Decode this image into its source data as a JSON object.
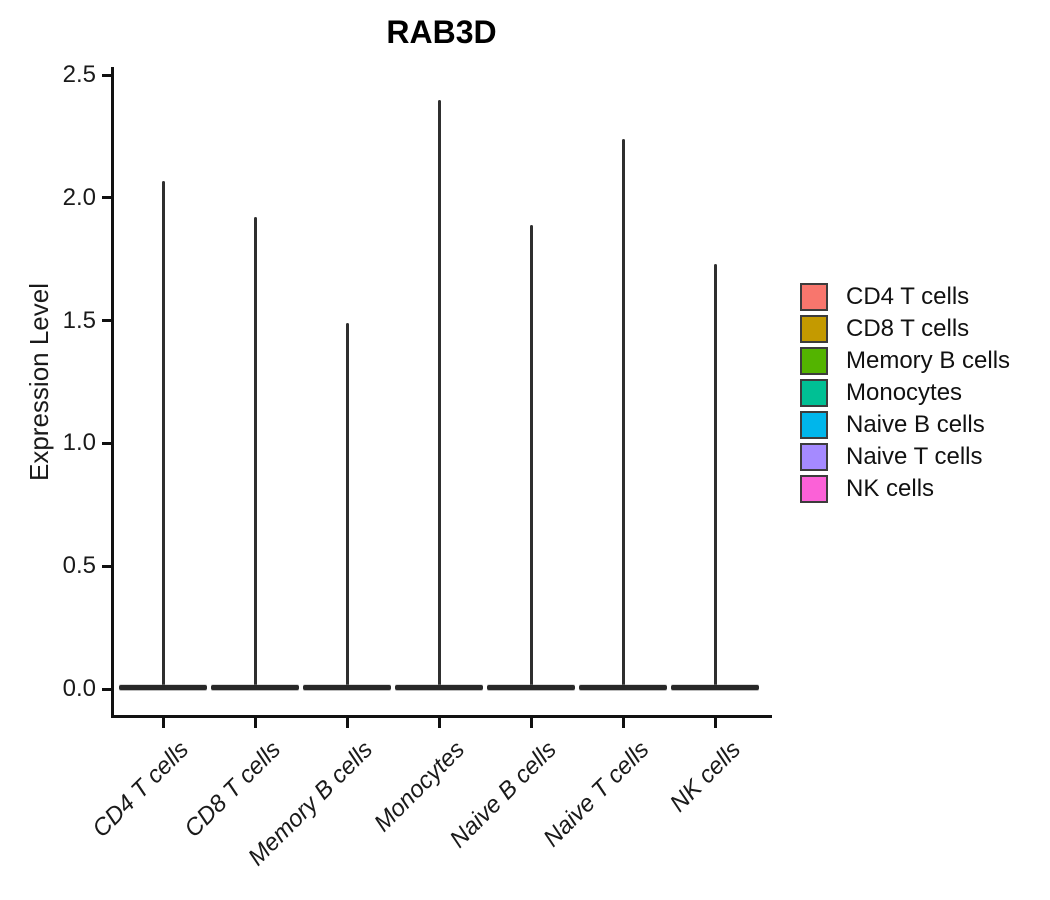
{
  "title": "RAB3D",
  "chart_data": {
    "type": "violin",
    "title": "RAB3D",
    "xlabel": "",
    "ylabel": "Expression Level",
    "categories": [
      "CD4 T cells",
      "CD8 T cells",
      "Memory B cells",
      "Monocytes",
      "Naive B cells",
      "Naive T cells",
      "NK cells"
    ],
    "series": [
      {
        "name": "CD4 T cells",
        "color": "#F8766D",
        "peak": 2.07,
        "baseline": 0.0
      },
      {
        "name": "CD8 T cells",
        "color": "#C49A00",
        "peak": 1.92,
        "baseline": 0.0
      },
      {
        "name": "Memory B cells",
        "color": "#53B400",
        "peak": 1.49,
        "baseline": 0.0
      },
      {
        "name": "Monocytes",
        "color": "#00C094",
        "peak": 2.4,
        "baseline": 0.0
      },
      {
        "name": "Naive B cells",
        "color": "#00B6EB",
        "peak": 1.89,
        "baseline": 0.0
      },
      {
        "name": "Naive T cells",
        "color": "#A58AFF",
        "peak": 2.24,
        "baseline": 0.0
      },
      {
        "name": "NK cells",
        "color": "#FB61D7",
        "peak": 1.73,
        "baseline": 0.0
      }
    ],
    "ylim": [
      0.0,
      2.5
    ],
    "ytick_labels": [
      "0.0",
      "0.5",
      "1.0",
      "1.5",
      "2.0",
      "2.5"
    ],
    "grid": false,
    "legend_position": "right",
    "shape_note": "Each violin is collapsed: a wide flat density bar at expression 0 with a thin vertical spike rising to the peak expression value."
  }
}
